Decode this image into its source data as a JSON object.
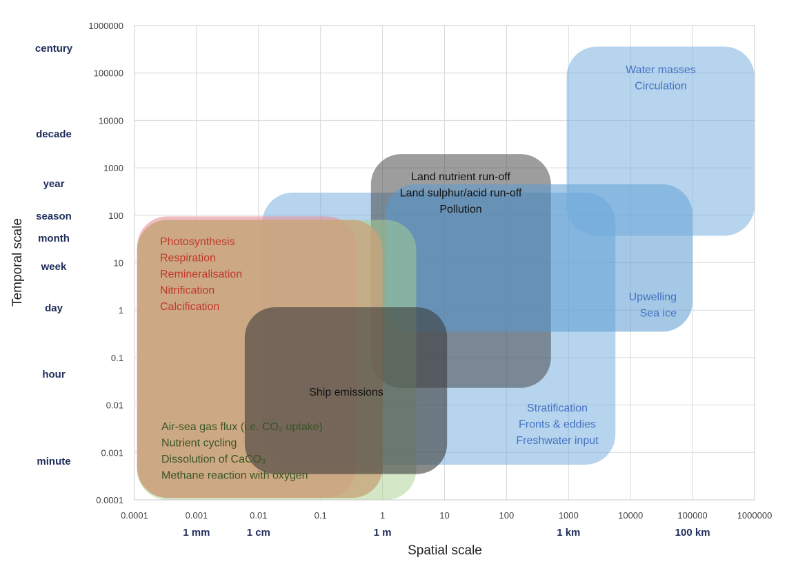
{
  "chart_data": {
    "type": "area",
    "xlabel": "Spatial scale",
    "ylabel": "Temporal scale",
    "xscale": "log",
    "yscale": "log",
    "xlim": [
      0.0001,
      1000000
    ],
    "ylim": [
      0.0001,
      1000000
    ],
    "grid": true,
    "x_ticks": [
      "0.0001",
      "0.001",
      "0.01",
      "0.1",
      "1",
      "10",
      "100",
      "1000",
      "10000",
      "100000",
      "1000000"
    ],
    "y_ticks": [
      "0.0001",
      "0.001",
      "0.01",
      "0.1",
      "1",
      "10",
      "100",
      "1000",
      "10000",
      "100000",
      "1000000"
    ],
    "x_secondary_labels": [
      {
        "value": 0.001,
        "label": "1 mm"
      },
      {
        "value": 0.01,
        "label": "1 cm"
      },
      {
        "value": 1,
        "label": "1 m"
      },
      {
        "value": 1000,
        "label": "1 km"
      },
      {
        "value": 100000,
        "label": "100 km"
      }
    ],
    "y_secondary_labels": [
      {
        "value": 365000,
        "label": "century"
      },
      {
        "value": 3650,
        "label": "decade"
      },
      {
        "value": 365,
        "label": "year"
      },
      {
        "value": 90,
        "label": "season"
      },
      {
        "value": 30,
        "label": "month"
      },
      {
        "value": 7,
        "label": "week"
      },
      {
        "value": 1,
        "label": "day"
      },
      {
        "value": 0.042,
        "label": "hour"
      },
      {
        "value": 0.0007,
        "label": "minute"
      }
    ],
    "regions": [
      {
        "id": "physical-mid",
        "x": [
          0.0115,
          5700
        ],
        "y": [
          0.00055,
          300
        ],
        "color": "#6eaadc",
        "opacity": 0.5,
        "labels": [
          "Stratification",
          "Fronts & eddies",
          "Freshwater input"
        ],
        "label_color": "#4472c4"
      },
      {
        "id": "land-runoff",
        "x": [
          0.65,
          520
        ],
        "y": [
          0.023,
          1950
        ],
        "color": "#3c3c3c",
        "opacity": 0.5,
        "labels": [
          "Land nutrient run-off",
          "Land sulphur/acid run-off",
          "Pollution"
        ],
        "label_color": "#111111"
      },
      {
        "id": "upwelling",
        "x": [
          1.1,
          100000
        ],
        "y": [
          0.35,
          450
        ],
        "color": "#5a9ad2",
        "opacity": 0.55,
        "labels": [
          "Upwelling",
          "Sea ice"
        ],
        "label_color": "#4472c4"
      },
      {
        "id": "water-masses",
        "x": [
          930,
          1000000
        ],
        "y": [
          37,
          360000
        ],
        "color": "#6eaadc",
        "opacity": 0.5,
        "labels": [
          "Water masses",
          "Circulation"
        ],
        "label_color": "#4472c4"
      },
      {
        "id": "chemical",
        "x": [
          0.00011,
          3.5
        ],
        "y": [
          0.0001,
          80
        ],
        "color": "#a8cf8e",
        "opacity": 0.5,
        "labels": [
          "Air-sea gas flux (i.e. CO₂ uptake)",
          "Nutrient cycling",
          "Dissolution of CaCO₃",
          "Methane reaction with oxygen"
        ],
        "label_color": "#375623"
      },
      {
        "id": "biological",
        "x": [
          0.00011,
          0.38
        ],
        "y": [
          0.00011,
          95
        ],
        "color": "#e8909a",
        "opacity": 0.6,
        "labels": [
          "Photosynthesis",
          "Respiration",
          "Remineralisation",
          "Nitrification",
          "Calcification"
        ],
        "label_color": "#c0392b"
      },
      {
        "id": "combined",
        "x": [
          0.00011,
          1
        ],
        "y": [
          0.00011,
          80
        ],
        "color": "#c8a57a",
        "opacity": 0.8,
        "labels": []
      },
      {
        "id": "ship-emissions",
        "x": [
          0.006,
          11
        ],
        "y": [
          0.00035,
          1.15
        ],
        "color": "#3c3c3c",
        "opacity": 0.6,
        "labels": [
          "Ship emissions"
        ],
        "label_color": "#111111"
      }
    ]
  }
}
